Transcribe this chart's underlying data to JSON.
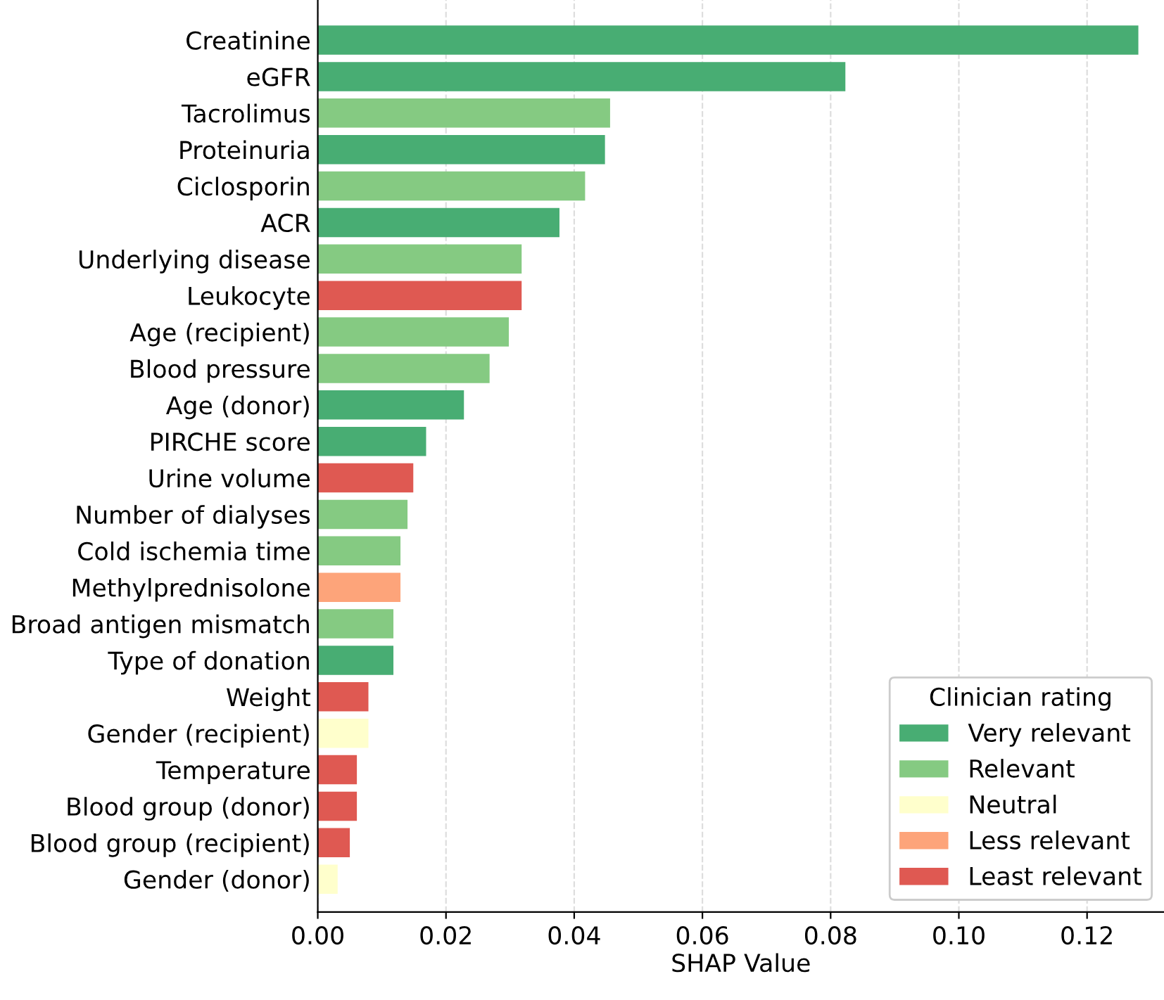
{
  "chart_data": {
    "type": "bar",
    "orientation": "horizontal",
    "xlabel": "SHAP Value",
    "legend_title": "Clinician rating",
    "legend": "bottom right",
    "grid": "x",
    "categories": [
      "Creatinine",
      "eGFR",
      "Tacrolimus",
      "Proteinuria",
      "Ciclosporin",
      "ACR",
      "Underlying disease",
      "Leukocyte",
      "Age (recipient)",
      "Blood pressure",
      "Age (donor)",
      "PIRCHE score",
      "Urine volume",
      "Number of dialyses",
      "Cold ischemia time",
      "Methylprednisolone",
      "Broad antigen mismatch",
      "Type of donation",
      "Weight",
      "Gender (recipient)",
      "Temperature",
      "Blood group (donor)",
      "Blood group (recipient)",
      "Gender (donor)"
    ],
    "series": [
      {
        "name": "Very relevant",
        "color": "#48ad73",
        "values": [
          0.128,
          0.0823,
          null,
          0.0448,
          null,
          0.0377,
          null,
          null,
          null,
          null,
          0.0228,
          0.0169,
          null,
          null,
          null,
          null,
          null,
          0.0118,
          null,
          null,
          null,
          null,
          null,
          null
        ]
      },
      {
        "name": "Relevant",
        "color": "#85ca82",
        "values": [
          null,
          null,
          0.0456,
          null,
          0.0417,
          null,
          0.0318,
          null,
          0.0298,
          0.0268,
          null,
          null,
          null,
          0.014,
          0.0129,
          null,
          0.0118,
          null,
          null,
          null,
          null,
          null,
          null,
          null
        ]
      },
      {
        "name": "Neutral",
        "color": "#ffffcc",
        "values": [
          null,
          null,
          null,
          null,
          null,
          null,
          null,
          null,
          null,
          null,
          null,
          null,
          null,
          null,
          null,
          null,
          null,
          null,
          null,
          0.0079,
          null,
          null,
          null,
          0.0031
        ]
      },
      {
        "name": "Less relevant",
        "color": "#fda47a",
        "values": [
          null,
          null,
          null,
          null,
          null,
          null,
          null,
          null,
          null,
          null,
          null,
          null,
          null,
          null,
          null,
          0.0129,
          null,
          null,
          null,
          null,
          null,
          null,
          null,
          null
        ]
      },
      {
        "name": "Least relevant",
        "color": "#df5952",
        "values": [
          null,
          null,
          null,
          null,
          null,
          null,
          null,
          0.0318,
          null,
          null,
          null,
          null,
          0.0149,
          null,
          null,
          null,
          null,
          null,
          0.0079,
          null,
          0.0061,
          0.0061,
          0.005,
          null
        ]
      }
    ],
    "xlim": [
      0,
      0.132
    ],
    "xticks": [
      {
        "value": 0,
        "label": "0.00"
      },
      {
        "value": 0.02,
        "label": "0.02"
      },
      {
        "value": 0.04,
        "label": "0.04"
      },
      {
        "value": 0.06,
        "label": "0.06"
      },
      {
        "value": 0.08,
        "label": "0.08"
      },
      {
        "value": 0.1,
        "label": "0.10"
      },
      {
        "value": 0.12,
        "label": "0.12"
      }
    ]
  }
}
